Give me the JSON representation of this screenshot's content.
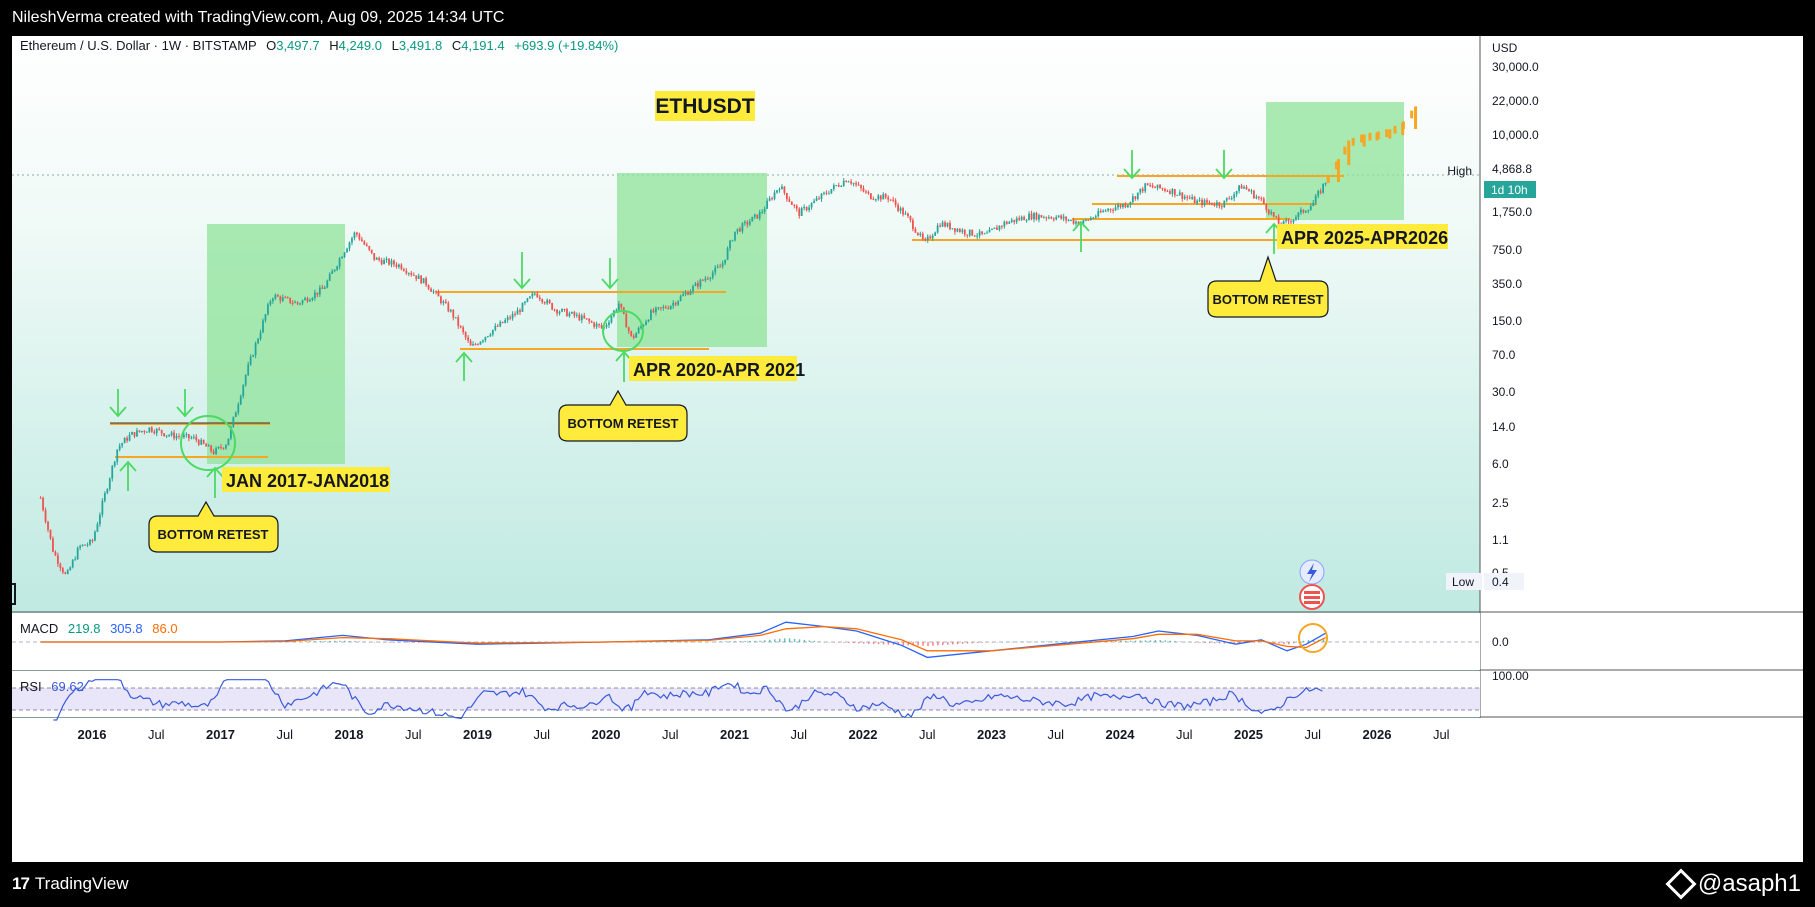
{
  "header": {
    "credit": "NileshVerma created with TradingView.com, Aug 09, 2025 14:34 UTC"
  },
  "legend": {
    "symbol": "Ethereum / U.S. Dollar · 1W · BITSTAMP",
    "open_label": "O",
    "open": "3,497.7",
    "high_label": "H",
    "high": "4,249.0",
    "low_label": "L",
    "low": "3,491.8",
    "close_label": "C",
    "close": "4,191.4",
    "change": "+693.9 (+19.84%)"
  },
  "title": "ETHUSDT",
  "currency": "USD",
  "high_marker": {
    "label": "High",
    "value": "4,868.8"
  },
  "low_marker": {
    "label": "Low",
    "value": "0.4"
  },
  "countdown": "1d 10h",
  "annotations": {
    "cycle1": "JAN 2017-JAN2018",
    "cycle2": "APR 2020-APR 2021",
    "cycle3": "APR 2025-APR2026",
    "bottom_retest": "BOTTOM RETEST"
  },
  "macd": {
    "label": "MACD",
    "v1": "219.8",
    "v2": "305.8",
    "v3": "86.0"
  },
  "rsi": {
    "label": "RSI",
    "value": "69.62"
  },
  "footer": {
    "brand": "TradingView",
    "watermark": "@asaph1"
  },
  "colors": {
    "up_candle": "#26a69a",
    "down_candle": "#ef5350",
    "projection": "#f5a623",
    "level_line": "#f5a623",
    "zone": "#8fe39a",
    "arrow": "#4cd964",
    "macd_line": "#2962ff",
    "signal_line": "#ff6d00",
    "rsi_line": "#3a5bd9",
    "label_bg": "#ffeb3b"
  },
  "chart_data": {
    "type": "candlestick",
    "scale": "log",
    "y_axis_ticks": [
      "30,000.0",
      "22,000.0",
      "10,000.0",
      "4,868.8",
      "1,750.0",
      "750.0",
      "350.0",
      "150.0",
      "70.0",
      "30.0",
      "14.0",
      "6.0",
      "2.5",
      "1.1",
      "0.5",
      "0.4"
    ],
    "x_axis_ticks": [
      "2016",
      "Jul",
      "2017",
      "Jul",
      "2018",
      "Jul",
      "2019",
      "Jul",
      "2020",
      "Jul",
      "2021",
      "Jul",
      "2022",
      "Jul",
      "2023",
      "Jul",
      "2024",
      "Jul",
      "2025",
      "Jul",
      "2026",
      "Jul"
    ],
    "rsi_ticks": [
      "100.00"
    ],
    "macd_ticks": [
      "0.0"
    ],
    "price_path": [
      {
        "t": 2015.6,
        "p": 2.8
      },
      {
        "t": 2015.7,
        "p": 0.8
      },
      {
        "t": 2015.8,
        "p": 0.45
      },
      {
        "t": 2015.9,
        "p": 0.9
      },
      {
        "t": 2016.0,
        "p": 1.0
      },
      {
        "t": 2016.1,
        "p": 3.0
      },
      {
        "t": 2016.2,
        "p": 9.0
      },
      {
        "t": 2016.3,
        "p": 12
      },
      {
        "t": 2016.45,
        "p": 14
      },
      {
        "t": 2016.6,
        "p": 12
      },
      {
        "t": 2016.8,
        "p": 11
      },
      {
        "t": 2016.95,
        "p": 8
      },
      {
        "t": 2017.05,
        "p": 10
      },
      {
        "t": 2017.2,
        "p": 50
      },
      {
        "t": 2017.4,
        "p": 300
      },
      {
        "t": 2017.6,
        "p": 250
      },
      {
        "t": 2017.8,
        "p": 350
      },
      {
        "t": 2017.95,
        "p": 800
      },
      {
        "t": 2018.05,
        "p": 1300
      },
      {
        "t": 2018.2,
        "p": 700
      },
      {
        "t": 2018.4,
        "p": 600
      },
      {
        "t": 2018.6,
        "p": 400
      },
      {
        "t": 2018.8,
        "p": 200
      },
      {
        "t": 2018.95,
        "p": 90
      },
      {
        "t": 2019.1,
        "p": 130
      },
      {
        "t": 2019.3,
        "p": 200
      },
      {
        "t": 2019.45,
        "p": 320
      },
      {
        "t": 2019.6,
        "p": 220
      },
      {
        "t": 2019.8,
        "p": 180
      },
      {
        "t": 2019.98,
        "p": 140
      },
      {
        "t": 2020.1,
        "p": 250
      },
      {
        "t": 2020.2,
        "p": 110
      },
      {
        "t": 2020.35,
        "p": 200
      },
      {
        "t": 2020.5,
        "p": 240
      },
      {
        "t": 2020.7,
        "p": 380
      },
      {
        "t": 2020.9,
        "p": 600
      },
      {
        "t": 2021.0,
        "p": 1300
      },
      {
        "t": 2021.2,
        "p": 2000
      },
      {
        "t": 2021.35,
        "p": 3800
      },
      {
        "t": 2021.5,
        "p": 2000
      },
      {
        "t": 2021.6,
        "p": 2500
      },
      {
        "t": 2021.75,
        "p": 3500
      },
      {
        "t": 2021.88,
        "p": 4500
      },
      {
        "t": 2022.05,
        "p": 3000
      },
      {
        "t": 2022.2,
        "p": 2900
      },
      {
        "t": 2022.35,
        "p": 1800
      },
      {
        "t": 2022.48,
        "p": 1000
      },
      {
        "t": 2022.6,
        "p": 1600
      },
      {
        "t": 2022.8,
        "p": 1300
      },
      {
        "t": 2022.95,
        "p": 1200
      },
      {
        "t": 2023.1,
        "p": 1600
      },
      {
        "t": 2023.3,
        "p": 1900
      },
      {
        "t": 2023.5,
        "p": 1850
      },
      {
        "t": 2023.7,
        "p": 1600
      },
      {
        "t": 2023.9,
        "p": 2200
      },
      {
        "t": 2024.05,
        "p": 2500
      },
      {
        "t": 2024.2,
        "p": 3800
      },
      {
        "t": 2024.4,
        "p": 3400
      },
      {
        "t": 2024.6,
        "p": 2600
      },
      {
        "t": 2024.8,
        "p": 2500
      },
      {
        "t": 2024.95,
        "p": 3800
      },
      {
        "t": 2025.1,
        "p": 2700
      },
      {
        "t": 2025.25,
        "p": 1500
      },
      {
        "t": 2025.35,
        "p": 1800
      },
      {
        "t": 2025.5,
        "p": 2500
      },
      {
        "t": 2025.6,
        "p": 4191
      }
    ],
    "projection_path": [
      {
        "t": 2025.62,
        "p": 4400
      },
      {
        "t": 2025.7,
        "p": 6500
      },
      {
        "t": 2025.78,
        "p": 10000
      },
      {
        "t": 2025.9,
        "p": 11500
      },
      {
        "t": 2026.0,
        "p": 12000
      },
      {
        "t": 2026.1,
        "p": 13000
      },
      {
        "t": 2026.2,
        "p": 15000
      },
      {
        "t": 2026.3,
        "p": 22000
      }
    ]
  }
}
